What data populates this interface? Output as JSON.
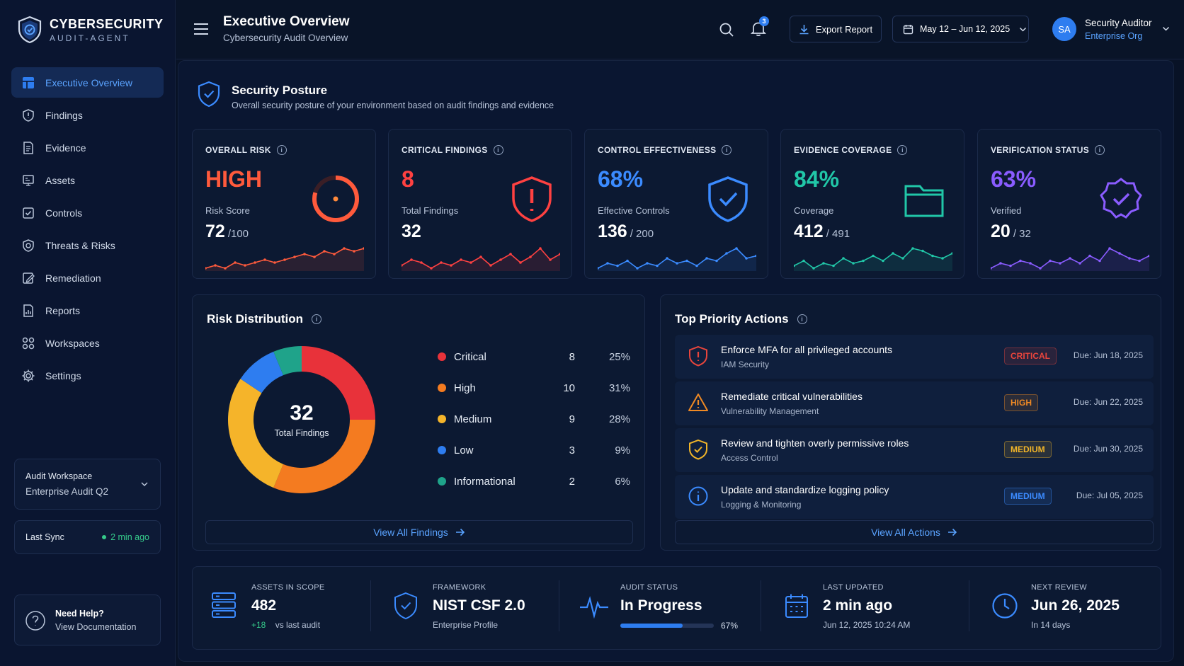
{
  "brand": {
    "title": "CYBERSECURITY",
    "subtitle": "AUDIT-AGENT"
  },
  "sidebar": {
    "items": [
      {
        "label": "Executive Overview",
        "icon": "dashboard-icon",
        "active": true
      },
      {
        "label": "Findings",
        "icon": "findings-icon"
      },
      {
        "label": "Evidence",
        "icon": "evidence-icon"
      },
      {
        "label": "Assets",
        "icon": "assets-icon"
      },
      {
        "label": "Controls",
        "icon": "controls-icon"
      },
      {
        "label": "Threats & Risks",
        "icon": "threats-icon"
      },
      {
        "label": "Remediation",
        "icon": "remediation-icon"
      },
      {
        "label": "Reports",
        "icon": "reports-icon"
      },
      {
        "label": "Workspaces",
        "icon": "workspaces-icon"
      },
      {
        "label": "Settings",
        "icon": "gear-icon"
      }
    ],
    "workspace": {
      "label": "Audit Workspace",
      "value": "Enterprise Audit Q2"
    },
    "sync": {
      "label": "Last Sync",
      "value": "2 min ago"
    },
    "help": {
      "title": "Need Help?",
      "link": "View Documentation"
    }
  },
  "header": {
    "title": "Executive Overview",
    "subtitle": "Cybersecurity Audit Overview",
    "notification_count": "3",
    "export_label": "Export Report",
    "date_range": "May 12 – Jun 12, 2025",
    "user": {
      "initials": "SA",
      "name": "Security Auditor",
      "org": "Enterprise Org"
    }
  },
  "posture": {
    "title": "Security Posture",
    "subtitle": "Overall security posture of your environment based on audit findings and evidence"
  },
  "kpis": [
    {
      "label": "OVERALL RISK",
      "value": "HIGH",
      "sub": "Risk Score",
      "num": "72",
      "den": "/100",
      "color": "#ff5a3c",
      "icon": "risk-gauge-icon",
      "spark": [
        3,
        4,
        3,
        5,
        4,
        5,
        6,
        5,
        6,
        7,
        8,
        7,
        9,
        8,
        10,
        9,
        10
      ]
    },
    {
      "label": "CRITICAL FINDINGS",
      "value": "8",
      "sub": "Total Findings",
      "num": "32",
      "den": "",
      "color": "#ff4141",
      "icon": "alert-shield-icon",
      "spark": [
        4,
        6,
        5,
        3,
        5,
        4,
        6,
        5,
        7,
        4,
        6,
        8,
        5,
        7,
        10,
        6,
        8
      ]
    },
    {
      "label": "CONTROL EFFECTIVENESS",
      "value": "68%",
      "sub": "Effective Controls",
      "num": "136",
      "den": "/ 200",
      "color": "#3b8bff",
      "icon": "check-shield-icon",
      "spark": [
        3,
        5,
        4,
        6,
        3,
        5,
        4,
        7,
        5,
        6,
        4,
        7,
        6,
        9,
        11,
        7,
        8
      ]
    },
    {
      "label": "EVIDENCE COVERAGE",
      "value": "84%",
      "sub": "Coverage",
      "num": "412",
      "den": "/ 491",
      "color": "#21c7a8",
      "icon": "folder-icon",
      "spark": [
        4,
        6,
        3,
        5,
        4,
        7,
        5,
        6,
        8,
        6,
        9,
        7,
        11,
        10,
        8,
        7,
        9
      ]
    },
    {
      "label": "VERIFICATION STATUS",
      "value": "63%",
      "sub": "Verified",
      "num": "20",
      "den": "/ 32",
      "color": "#8a5cff",
      "icon": "verified-badge-icon",
      "spark": [
        3,
        5,
        4,
        6,
        5,
        3,
        6,
        5,
        7,
        5,
        8,
        6,
        11,
        9,
        7,
        6,
        8
      ]
    }
  ],
  "risk_distribution": {
    "title": "Risk Distribution",
    "total": "32",
    "total_label": "Total Findings",
    "rows": [
      {
        "name": "Critical",
        "count": "8",
        "pct": "25%",
        "color": "#e8323a",
        "value": 8
      },
      {
        "name": "High",
        "count": "10",
        "pct": "31%",
        "color": "#f47b20",
        "value": 10
      },
      {
        "name": "Medium",
        "count": "9",
        "pct": "28%",
        "color": "#f5b42a",
        "value": 9
      },
      {
        "name": "Low",
        "count": "3",
        "pct": "9%",
        "color": "#2e7df0",
        "value": 3
      },
      {
        "name": "Informational",
        "count": "2",
        "pct": "6%",
        "color": "#1fa38a",
        "value": 2
      }
    ],
    "link": "View All Findings"
  },
  "priority_actions": {
    "title": "Top Priority Actions",
    "items": [
      {
        "title": "Enforce MFA for all privileged accounts",
        "sub": "IAM Security",
        "badge": "CRITICAL",
        "badge_color": "#e8453c",
        "due": "Due: Jun 18, 2025",
        "icon": "alert-shield-icon",
        "icon_color": "#e8453c"
      },
      {
        "title": "Remediate critical vulnerabilities",
        "sub": "Vulnerability Management",
        "badge": "HIGH",
        "badge_color": "#f08a24",
        "due": "Due: Jun 22, 2025",
        "icon": "warning-triangle-icon",
        "icon_color": "#f08a24"
      },
      {
        "title": "Review and tighten overly permissive roles",
        "sub": "Access Control",
        "badge": "MEDIUM",
        "badge_color": "#f0b429",
        "due": "Due: Jun 30, 2025",
        "icon": "check-shield-icon",
        "icon_color": "#f0b429"
      },
      {
        "title": "Update and standardize logging policy",
        "sub": "Logging & Monitoring",
        "badge": "MEDIUM",
        "badge_color": "#3b8bff",
        "due": "Due: Jul 05, 2025",
        "icon": "info-circle-icon",
        "icon_color": "#3b8bff"
      }
    ],
    "link": "View All Actions"
  },
  "summary": {
    "assets": {
      "label": "ASSETS IN SCOPE",
      "value": "482",
      "delta": "+18",
      "delta_label": "vs last audit"
    },
    "framework": {
      "label": "FRAMEWORK",
      "value": "NIST CSF 2.0",
      "sub": "Enterprise Profile"
    },
    "audit_status": {
      "label": "AUDIT STATUS",
      "value": "In Progress",
      "progress": 0.67,
      "progress_label": "67%"
    },
    "last_updated": {
      "label": "LAST UPDATED",
      "value": "2 min ago",
      "sub": "Jun 12, 2025 10:24 AM"
    },
    "next_review": {
      "label": "NEXT REVIEW",
      "value": "Jun 26, 2025",
      "sub": "In 14 days"
    }
  }
}
